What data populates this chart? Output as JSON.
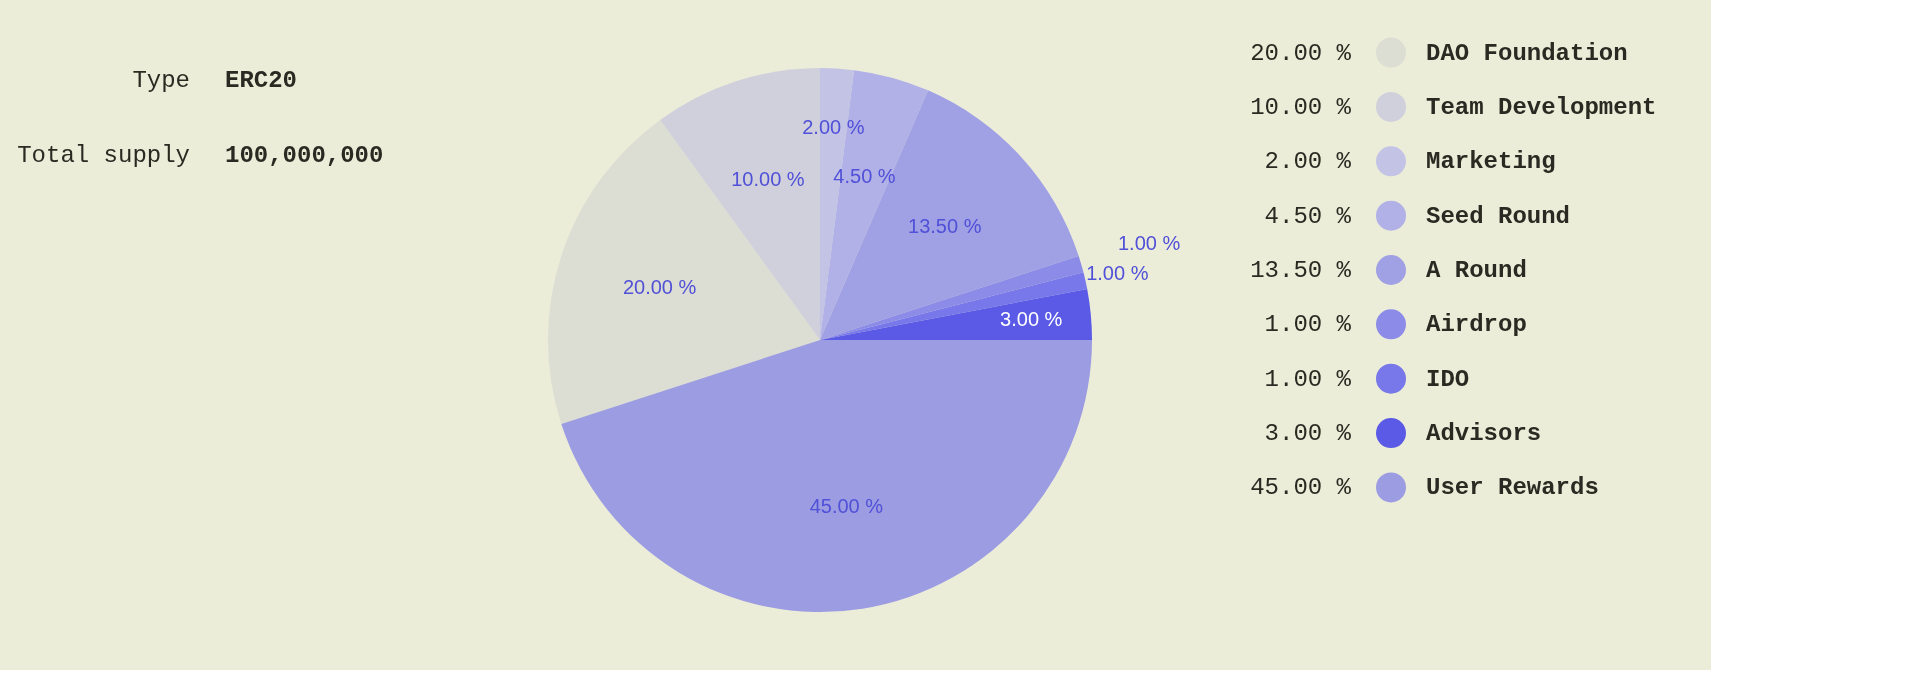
{
  "chart_data": {
    "type": "pie",
    "categories": [
      "DAO Foundation",
      "Team Development",
      "Marketing",
      "Seed Round",
      "A Round",
      "Airdrop",
      "IDO",
      "Advisors",
      "User Rewards"
    ],
    "values": [
      20,
      10,
      2,
      4.5,
      13.5,
      1,
      1,
      3,
      45
    ],
    "value_labels": [
      "20.00 %",
      "10.00 %",
      "2.00 %",
      "4.50 %",
      "13.50 %",
      "1.00 %",
      "1.00 %",
      "3.00 %",
      "45.00 %"
    ],
    "colors": [
      "#dcddd3",
      "#d0d0dc",
      "#c3c3e6",
      "#b1b1e8",
      "#a0a0e4",
      "#8c8ce8",
      "#7878ea",
      "#5a5ae6",
      "#9c9ce2"
    ],
    "legend": "right",
    "annotations": [
      "Type",
      "ERC20",
      "Total supply",
      "100,000,000"
    ]
  }
}
